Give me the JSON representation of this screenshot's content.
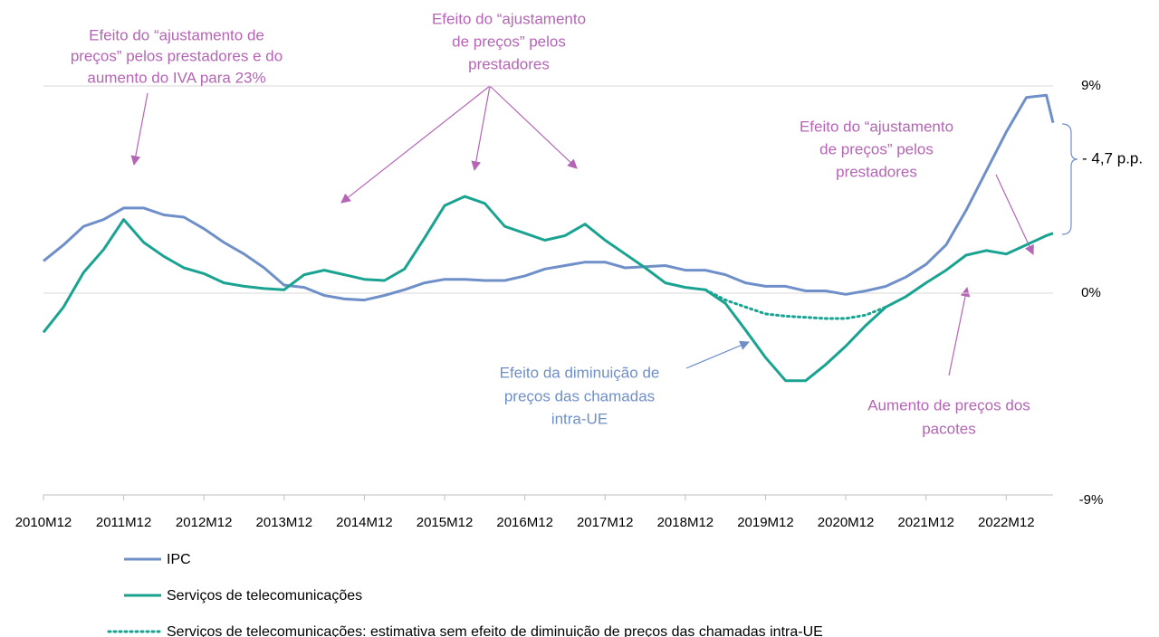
{
  "chart_data": {
    "type": "line",
    "x": [
      0,
      3,
      6,
      9,
      12,
      15,
      18,
      21,
      24,
      27,
      30,
      33,
      36,
      39,
      42,
      45,
      48,
      51,
      54,
      57,
      60,
      63,
      66,
      69,
      72,
      75,
      78,
      81,
      84,
      87,
      90,
      93,
      96,
      99,
      102,
      105,
      108,
      111,
      114,
      117,
      120,
      123,
      126,
      129,
      132,
      135,
      138,
      141,
      144,
      147,
      150,
      151
    ],
    "xlim": [
      0,
      151
    ],
    "xticks": [
      {
        "value": 0,
        "label": "2010M12"
      },
      {
        "value": 12,
        "label": "2011M12"
      },
      {
        "value": 24,
        "label": "2012M12"
      },
      {
        "value": 36,
        "label": "2013M12"
      },
      {
        "value": 48,
        "label": "2014M12"
      },
      {
        "value": 60,
        "label": "2015M12"
      },
      {
        "value": 72,
        "label": "2016M12"
      },
      {
        "value": 84,
        "label": "2017M12"
      },
      {
        "value": 96,
        "label": "2018M12"
      },
      {
        "value": 108,
        "label": "2019M12"
      },
      {
        "value": 120,
        "label": "2020M12"
      },
      {
        "value": 132,
        "label": "2021M12"
      },
      {
        "value": 144,
        "label": "2022M12"
      }
    ],
    "ylim": [
      -9,
      9
    ],
    "yticks": [
      {
        "value": 9,
        "label": "9%"
      },
      {
        "value": 0,
        "label": "0%"
      },
      {
        "value": -9,
        "label": "-9%"
      }
    ],
    "grid": true,
    "series": [
      {
        "name": "IPC",
        "color": "#6f8fc9",
        "style": "solid",
        "values": [
          1.4,
          2.1,
          2.9,
          3.2,
          3.7,
          3.7,
          3.4,
          3.3,
          2.8,
          2.2,
          1.7,
          1.1,
          0.35,
          0.25,
          -0.1,
          -0.25,
          -0.3,
          -0.1,
          0.15,
          0.45,
          0.6,
          0.6,
          0.55,
          0.55,
          0.75,
          1.05,
          1.2,
          1.35,
          1.35,
          1.1,
          1.15,
          1.2,
          1.0,
          1.0,
          0.8,
          0.45,
          0.3,
          0.3,
          0.1,
          0.1,
          -0.05,
          0.1,
          0.3,
          0.7,
          1.25,
          2.1,
          3.6,
          5.3,
          7.0,
          8.5,
          8.6,
          7.4
        ]
      },
      {
        "name": "Serviços de telecomunicações",
        "color": "#1aa391",
        "style": "solid",
        "values": [
          -1.7,
          -0.6,
          0.9,
          1.9,
          3.2,
          2.2,
          1.6,
          1.1,
          0.85,
          0.45,
          0.3,
          0.2,
          0.15,
          0.8,
          1.0,
          0.8,
          0.6,
          0.55,
          1.05,
          2.4,
          3.8,
          4.2,
          3.9,
          2.9,
          2.6,
          2.3,
          2.5,
          3.0,
          2.3,
          1.7,
          1.1,
          0.45,
          0.25,
          0.15,
          -0.45,
          -1.6,
          -2.8,
          -3.8,
          -3.8,
          -3.1,
          -2.3,
          -1.4,
          -0.6,
          -0.15,
          0.45,
          1.0,
          1.65,
          1.85,
          1.7,
          2.1,
          2.5,
          2.6
        ]
      },
      {
        "name": "Serviços de telecomunicações: estimativa sem efeito de diminuição de preços das chamadas intra-UE",
        "color": "#1aa391",
        "style": "dotted",
        "values": [
          null,
          null,
          null,
          null,
          null,
          null,
          null,
          null,
          null,
          null,
          null,
          null,
          null,
          null,
          null,
          null,
          null,
          null,
          null,
          null,
          null,
          null,
          null,
          null,
          null,
          null,
          null,
          null,
          null,
          null,
          null,
          null,
          null,
          0.15,
          -0.3,
          -0.6,
          -0.9,
          -1.0,
          -1.05,
          -1.1,
          -1.1,
          -0.95,
          -0.6,
          null,
          null,
          null,
          null,
          null,
          null,
          null,
          null,
          null
        ]
      }
    ],
    "annotations": [
      {
        "text": [
          "Efeito do “ajustamento de",
          "preços” pelos prestadores e do",
          "aumento do IVA para 23%"
        ],
        "color": "#b565b5"
      },
      {
        "text": [
          "Efeito do “ajustamento",
          "de preços” pelos",
          "prestadores"
        ],
        "color": "#b565b5"
      },
      {
        "text": [
          "Efeito do “ajustamento",
          "de preços” pelos",
          "prestadores"
        ],
        "color": "#b565b5"
      },
      {
        "text": [
          "Efeito da diminuição de",
          "preços das chamadas",
          "intra-UE"
        ],
        "color": "#6f8fc9"
      },
      {
        "text": [
          "Aumento de preços dos",
          "pacotes"
        ],
        "color": "#b565b5"
      },
      {
        "text": [
          "- 4,7 p.p."
        ],
        "color": "#000000"
      }
    ]
  }
}
